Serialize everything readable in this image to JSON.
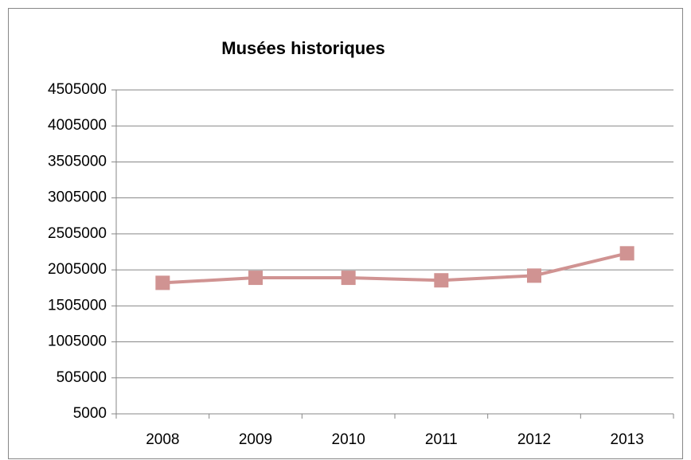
{
  "chart_data": {
    "type": "line",
    "title": "Musées historiques",
    "categories": [
      "2008",
      "2009",
      "2010",
      "2011",
      "2012",
      "2013"
    ],
    "series": [
      {
        "name": "Musées historiques",
        "color": "#d09392",
        "values": [
          1825000,
          1895000,
          1895000,
          1860000,
          1925000,
          2235000
        ]
      }
    ],
    "ylim": [
      5000,
      4505000
    ],
    "yticks": [
      5000,
      505000,
      1005000,
      1505000,
      2005000,
      2505000,
      3005000,
      3505000,
      4005000,
      4505000
    ],
    "grid": true
  }
}
